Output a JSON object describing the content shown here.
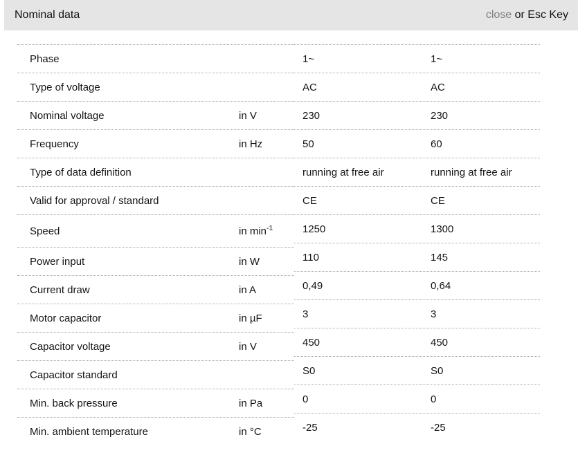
{
  "header": {
    "title": "Nominal data",
    "close_label": "close",
    "close_suffix": " or Esc Key"
  },
  "colors": {
    "header_bg": "#e5e5e5",
    "close_link": "#7f7f7f",
    "row_border": "#a6a6a6",
    "text": "#141414"
  },
  "table": {
    "rows": [
      {
        "label": "Phase",
        "unit": "",
        "values": [
          "1~",
          "1~"
        ]
      },
      {
        "label": "Type of voltage",
        "unit": "",
        "values": [
          "AC",
          "AC"
        ]
      },
      {
        "label": "Nominal voltage",
        "unit": "in V",
        "values": [
          "230",
          "230"
        ]
      },
      {
        "label": "Frequency",
        "unit": "in Hz",
        "values": [
          "50",
          "60"
        ]
      },
      {
        "label": "Type of data definition",
        "unit": "",
        "values": [
          "running at free air",
          "running at free air"
        ]
      },
      {
        "label": "Valid for approval / standard",
        "unit": "",
        "values": [
          "CE",
          "CE"
        ]
      },
      {
        "label": "Speed",
        "unit": "in min",
        "unit_sup": "-1",
        "values": [
          "1250",
          "1300"
        ]
      },
      {
        "label": "Power input",
        "unit": "in W",
        "values": [
          "110",
          "145"
        ]
      },
      {
        "label": "Current draw",
        "unit": "in A",
        "values": [
          "0,49",
          "0,64"
        ]
      },
      {
        "label": "Motor capacitor",
        "unit": "in µF",
        "values": [
          "3",
          "3"
        ]
      },
      {
        "label": "Capacitor voltage",
        "unit": "in V",
        "values": [
          "450",
          "450"
        ]
      },
      {
        "label": "Capacitor standard",
        "unit": "",
        "values": [
          "S0",
          "S0"
        ]
      },
      {
        "label": "Min. back pressure",
        "unit": "in Pa",
        "values": [
          "0",
          "0"
        ]
      },
      {
        "label": "Min. ambient temperature",
        "unit": "in °C",
        "values": [
          "-25",
          "-25"
        ]
      }
    ]
  }
}
